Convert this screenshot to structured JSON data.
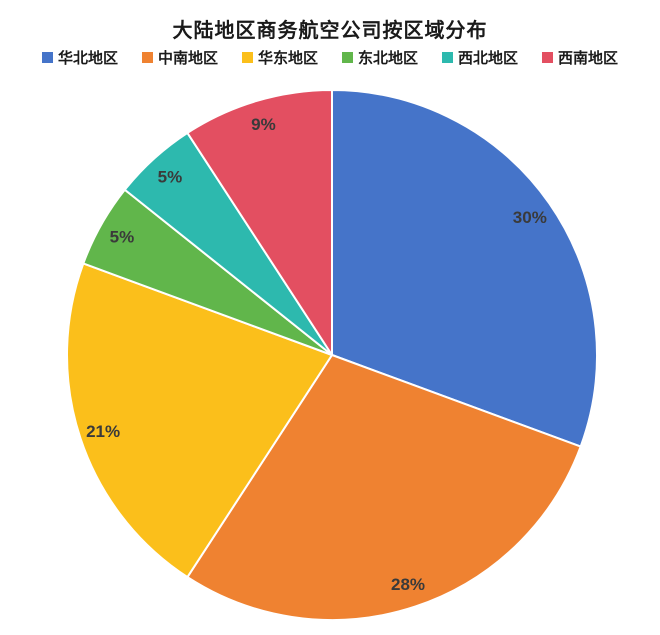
{
  "chart_data": {
    "type": "pie",
    "title": "大陆地区商务航空公司按区域分布",
    "legend_position": "top",
    "direction": "clockwise",
    "start_angle_deg": 0,
    "background": "#ffffff",
    "label_color": "#3a3a3a",
    "slice_border_color": "#ffffff",
    "series": [
      {
        "name": "华北地区",
        "value": 30,
        "label": "30%",
        "color": "#4574C9"
      },
      {
        "name": "中南地区",
        "value": 28,
        "label": "28%",
        "color": "#EF8231"
      },
      {
        "name": "华东地区",
        "value": 21,
        "label": "21%",
        "color": "#FBBF1B"
      },
      {
        "name": "东北地区",
        "value": 5,
        "label": "5%",
        "color": "#61B64B"
      },
      {
        "name": "西北地区",
        "value": 5,
        "label": "5%",
        "color": "#2DB9AE"
      },
      {
        "name": "西南地区",
        "value": 9,
        "label": "9%",
        "color": "#E34F61"
      }
    ]
  }
}
